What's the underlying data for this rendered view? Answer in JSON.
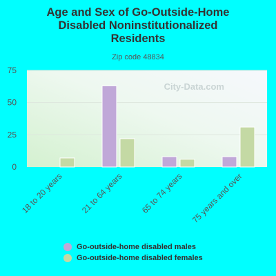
{
  "chart_data": {
    "type": "bar",
    "title": "Age and Sex of Go-Outside-Home Disabled Noninstitutionalized Residents",
    "subtitle": "Zip code 48834",
    "watermark": "City-Data.com",
    "categories": [
      "18 to 20 years",
      "21 to 64 years",
      "65 to 74 years",
      "75 years and over"
    ],
    "series": [
      {
        "name": "Go-outside-home disabled males",
        "color": "#c0a8d8",
        "values": [
          0,
          63,
          8,
          8
        ]
      },
      {
        "name": "Go-outside-home disabled females",
        "color": "#c4d9a4",
        "values": [
          7,
          22,
          6,
          31
        ]
      }
    ],
    "ylim": [
      0,
      75
    ],
    "yticks": [
      0,
      25,
      50,
      75
    ],
    "grid": true,
    "legend": "bottom"
  }
}
